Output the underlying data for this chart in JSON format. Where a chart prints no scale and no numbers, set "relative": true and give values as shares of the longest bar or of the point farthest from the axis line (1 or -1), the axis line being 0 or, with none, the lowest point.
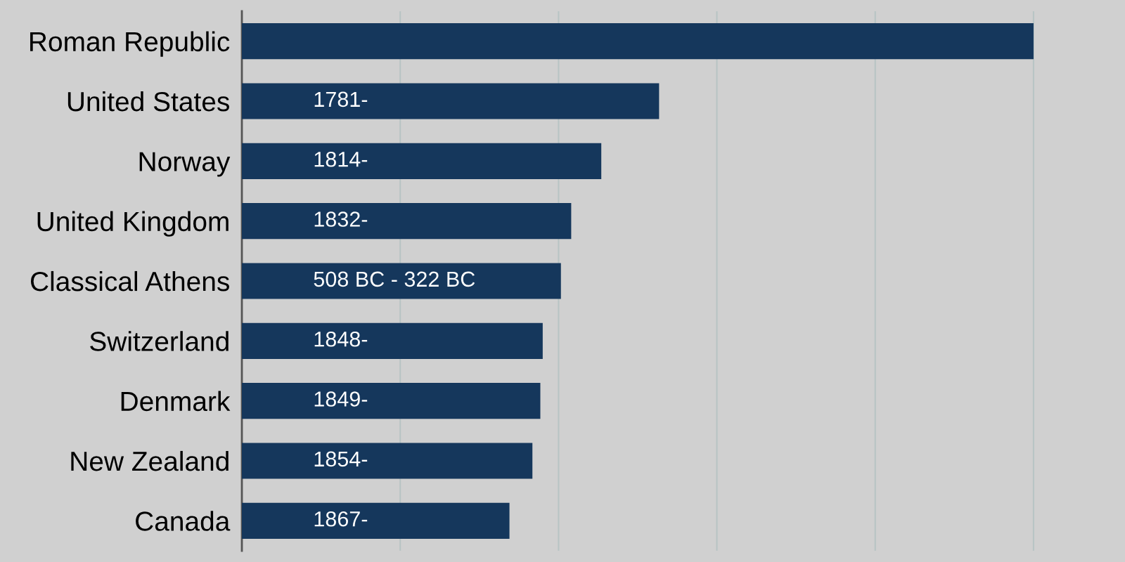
{
  "chart_data": {
    "type": "bar",
    "orientation": "horizontal",
    "relative": true,
    "grid": "x",
    "data_labels": false,
    "categories": [
      "Roman Republic",
      "United States",
      "Norway",
      "United Kingdom",
      "Classical Athens",
      "Switzerland",
      "Denmark",
      "New Zealand",
      "Canada"
    ],
    "values": [
      1.0,
      0.527,
      0.454,
      0.416,
      0.403,
      0.38,
      0.377,
      0.367,
      0.338
    ],
    "annotations": [
      "1781-",
      "1814-",
      "1832-",
      "508 BC - 322 BC",
      "1848-",
      "1849-",
      "1854-",
      "1867-"
    ],
    "color": "#15375c"
  }
}
